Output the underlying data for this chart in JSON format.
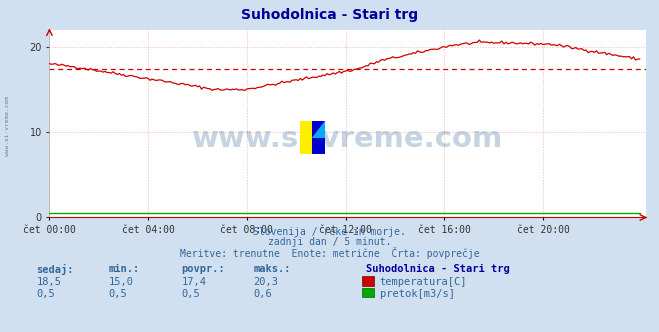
{
  "title": "Suhodolnica - Stari trg",
  "title_color": "#000099",
  "bg_color": "#d0e0f0",
  "plot_bg_color": "#ffffff",
  "grid_color": "#ffb0b0",
  "xlabel_ticks": [
    "čet 00:00",
    "čet 04:00",
    "čet 08:00",
    "čet 12:00",
    "čet 16:00",
    "čet 20:00"
  ],
  "xtick_positions": [
    0,
    48,
    96,
    144,
    192,
    240
  ],
  "ytick_positions": [
    0,
    10,
    20
  ],
  "ylim": [
    0,
    22
  ],
  "xlim": [
    0,
    290
  ],
  "temp_color": "#cc0000",
  "pretok_color": "#00aa00",
  "avg_line_color": "#cc0000",
  "avg_value": 17.4,
  "watermark": "www.si-vreme.com",
  "watermark_color": "#336699",
  "watermark_alpha": 0.28,
  "text_line1": "Slovenija / reke in morje.",
  "text_line2": "zadnji dan / 5 minut.",
  "text_line3": "Meritve: trenutne  Enote: metrične  Črta: povprečje",
  "text_color": "#336699",
  "table_headers": [
    "sedaj:",
    "min.:",
    "povpr.:",
    "maks.:"
  ],
  "table_row1": [
    "18,5",
    "15,0",
    "17,4",
    "20,3"
  ],
  "table_row2": [
    "0,5",
    "0,5",
    "0,5",
    "0,6"
  ],
  "legend_title": "Suhodolnica - Stari trg",
  "legend_temp": "temperatura[C]",
  "legend_pretok": "pretok[m3/s]",
  "sidebar_text": "www.si-vreme.com",
  "sidebar_color": "#336699",
  "icon_yellow": "#ffee00",
  "icon_blue_dark": "#0000cc",
  "icon_blue_light": "#00aaff"
}
